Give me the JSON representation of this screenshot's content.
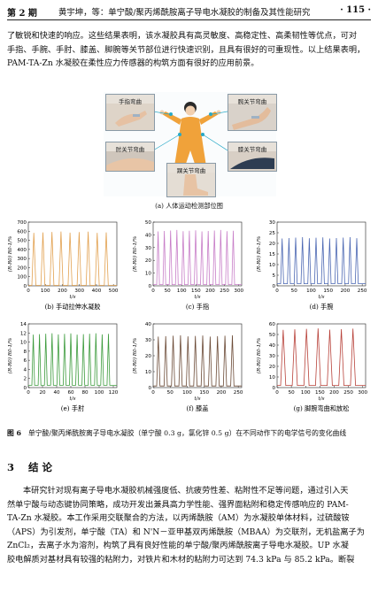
{
  "header": {
    "issue": "第 2 期",
    "running_title": "黄宇坤，等：单宁酸/聚丙烯酰胺离子导电水凝胶的制备及其性能研究",
    "page_number": "· 115 ·"
  },
  "paragraph1": [
    "了敏锐和快速的响应。这些结果表明，该水凝胶具有高灵敏度、高稳定性、高柔韧性等优点，可对",
    "手指、手腕、手肘、膝盖、脚腕等关节部位进行快速识别，且具有很好的可重现性。以上结果表明，",
    "PAM-TA-Zn 水凝胶在柔性应力传感器的构筑方面有很好的应用前景。"
  ],
  "figure_a": {
    "photos": [
      {
        "label": "手指弯曲"
      },
      {
        "label": "肘关节弯曲"
      },
      {
        "label": "腕关节弯曲"
      },
      {
        "label": "膝关节弯曲"
      },
      {
        "label": "踝关节弯曲"
      }
    ],
    "sublabel": "(a) 人体运动检测部位图"
  },
  "chart_data": [
    {
      "id": "b",
      "type": "line",
      "color": "#e2a150",
      "xlabel": "t/s",
      "ylabel": "(R-R0) R0-1/%",
      "x_ticks": [
        "0",
        "100",
        "200",
        "300",
        "400",
        "500"
      ],
      "y_ticks": [
        "0",
        "100",
        "200",
        "300",
        "400",
        "500",
        "600",
        "700"
      ],
      "ylim": [
        0,
        700
      ],
      "xlim": [
        0,
        520
      ],
      "cycles": 9,
      "peak": 600,
      "baseline": 5,
      "sublabel": "(b) 手动拉伸水凝胶"
    },
    {
      "id": "c",
      "type": "line",
      "color": "#c87ec8",
      "xlabel": "t/s",
      "ylabel": "(R-R0) R0-1/%",
      "x_ticks": [
        "0",
        "50",
        "100",
        "150",
        "200",
        "250",
        "300"
      ],
      "y_ticks": [
        "0",
        "10",
        "20",
        "30",
        "40",
        "50"
      ],
      "ylim": [
        0,
        50
      ],
      "xlim": [
        0,
        310
      ],
      "cycles": 13,
      "peak": 44,
      "baseline": 1,
      "sublabel": "(c) 手指"
    },
    {
      "id": "d",
      "type": "line",
      "color": "#4c68b3",
      "xlabel": "t/s",
      "ylabel": "(R-R0) R0-1/%",
      "x_ticks": [
        "0",
        "50",
        "100",
        "150",
        "200",
        "250"
      ],
      "y_ticks": [
        "0",
        "5",
        "10",
        "15",
        "20",
        "25",
        "30"
      ],
      "ylim": [
        0,
        30
      ],
      "xlim": [
        0,
        260
      ],
      "cycles": 12,
      "peak": 23,
      "baseline": 1,
      "sublabel": "(d) 手腕"
    },
    {
      "id": "e",
      "type": "line",
      "color": "#3c9b3c",
      "xlabel": "t/s",
      "ylabel": "(R-R0) R0-1/%",
      "x_ticks": [
        "0",
        "20",
        "40",
        "60",
        "80",
        "100",
        "120"
      ],
      "y_ticks": [
        "0",
        "2",
        "4",
        "6",
        "8",
        "10",
        "12",
        "14"
      ],
      "ylim": [
        0,
        14
      ],
      "xlim": [
        0,
        125
      ],
      "cycles": 13,
      "peak": 12,
      "baseline": 0.5,
      "sublabel": "(e) 手肘"
    },
    {
      "id": "f",
      "type": "line",
      "color": "#6b4a36",
      "xlabel": "t/s",
      "ylabel": "(R-R0) R0-1/%",
      "x_ticks": [
        "0",
        "50",
        "100",
        "150",
        "200",
        "250"
      ],
      "y_ticks": [
        "0",
        "10",
        "20",
        "30",
        "40"
      ],
      "ylim": [
        0,
        40
      ],
      "xlim": [
        0,
        260
      ],
      "cycles": 11,
      "peak": 33,
      "baseline": 1,
      "sublabel": "(f) 膝盖"
    },
    {
      "id": "g",
      "type": "line",
      "color": "#b8423a",
      "xlabel": "t/s",
      "ylabel": "(R-R0) R0-1/%",
      "x_ticks": [
        "0",
        "50",
        "100",
        "150",
        "200",
        "250",
        "300"
      ],
      "y_ticks": [
        "0",
        "10",
        "20",
        "30",
        "40",
        "50",
        "60"
      ],
      "ylim": [
        0,
        60
      ],
      "xlim": [
        0,
        310
      ],
      "cycles": 7,
      "peak": 56,
      "baseline": 2,
      "sublabel": "(g) 脚腕弯曲和放松"
    }
  ],
  "caption": {
    "figno": "图 6",
    "text": "单宁酸/聚丙烯酰胺离子导电水凝胶（单宁酸 0.3 g，氯化锌 0.5 g）在不同动作下的电学信号的变化曲线"
  },
  "section": {
    "number": "3",
    "title": "结 论"
  },
  "paragraph2": [
    "本研究针对现有离子导电水凝胶机械强度低、抗疲劳性差、粘附性不足等问题，通过引入天",
    "然单宁酸与动态键协同策略，成功开发出兼具高力学性能、强界面粘附和稳定传感响应的 PAM-",
    "TA-Zn 水凝胶。本工作采用交联聚合的方法，以丙烯酰胺（AM）为水凝胶单体材料，过硫酸铵",
    "（APS）为引发剂，单宁酸（TA）和 N'N－亚甲基双丙烯酰胺（MBAA）为交联剂，无机盐离子为",
    "ZnCl₂，去离子水为溶剂，构筑了具有良好性能的单宁酸/聚丙烯酰胺离子导电水凝胶。UP 水凝",
    "胶电解质对基材具有较强的粘附力，对铁片和木材的粘附力可达到 74.3 kPa 与 85.2 kPa。断裂"
  ]
}
